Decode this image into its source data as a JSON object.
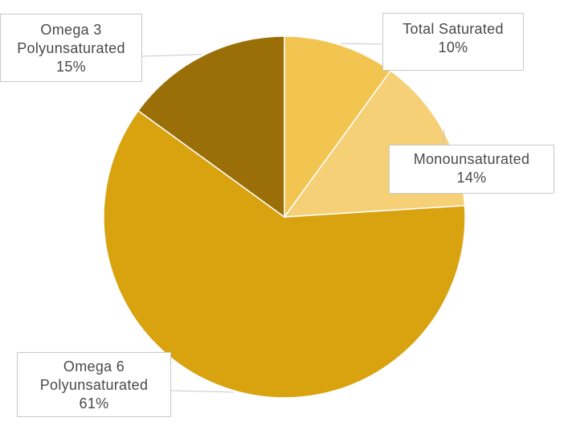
{
  "chart_data": {
    "type": "pie",
    "slices": [
      {
        "label": "Total Saturated",
        "value": 10,
        "percent_label": "10%",
        "color": "#F2C450"
      },
      {
        "label": "Monounsaturated",
        "value": 14,
        "percent_label": "14%",
        "color": "#F5D077"
      },
      {
        "label": "Omega 6 Polyunsaturated",
        "label_lines": [
          "Omega 6",
          "Polyunsaturated"
        ],
        "value": 61,
        "percent_label": "61%",
        "color": "#D9A20F"
      },
      {
        "label": "Omega 3 Polyunsaturated",
        "label_lines": [
          "Omega 3",
          "Polyunsaturated"
        ],
        "value": 15,
        "percent_label": "15%",
        "color": "#9A6F08"
      }
    ],
    "legend": "none",
    "data_labels": "callouts"
  }
}
